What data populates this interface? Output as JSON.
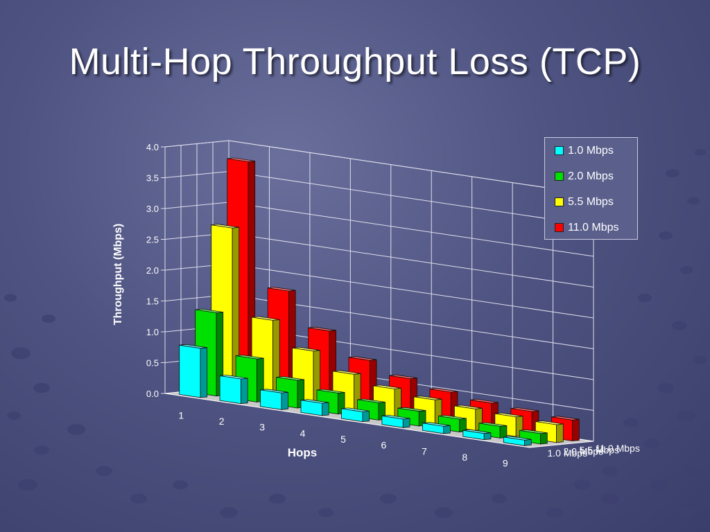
{
  "slide": {
    "title": "Multi-Hop Throughput Loss (TCP)"
  },
  "colors": {
    "1.0 Mbps": "#00ffff",
    "2.0 Mbps": "#00e000",
    "5.5 Mbps": "#ffff00",
    "11.0 Mbps": "#ff0000"
  },
  "legend": {
    "items": [
      {
        "label": "1.0 Mbps",
        "color": "#00ffff"
      },
      {
        "label": "2.0 Mbps",
        "color": "#00e000"
      },
      {
        "label": "5.5 Mbps",
        "color": "#ffff00"
      },
      {
        "label": "11.0 Mbps",
        "color": "#ff0000"
      }
    ]
  },
  "chart_data": {
    "type": "bar",
    "title": "",
    "xlabel": "Hops",
    "ylabel": "Throughput (Mbps)",
    "ylim": [
      0,
      4.0
    ],
    "yticks": [
      "0.0",
      "0.5",
      "1.0",
      "1.5",
      "2.0",
      "2.5",
      "3.0",
      "3.5",
      "4.0"
    ],
    "categories": [
      "1",
      "2",
      "3",
      "4",
      "5",
      "6",
      "7",
      "8",
      "9"
    ],
    "depth_labels": [
      "1.0 Mbps",
      "2.0 Mbps",
      "5.5 Mbps",
      "11.0 Mbps"
    ],
    "grid": true,
    "legend_position": "top-right",
    "series": [
      {
        "name": "1.0 Mbps",
        "values": [
          0.8,
          0.4,
          0.27,
          0.2,
          0.16,
          0.14,
          0.12,
          0.1,
          0.09
        ]
      },
      {
        "name": "2.0 Mbps",
        "values": [
          1.35,
          0.7,
          0.45,
          0.34,
          0.28,
          0.24,
          0.21,
          0.19,
          0.17
        ]
      },
      {
        "name": "5.5 Mbps",
        "values": [
          2.7,
          1.3,
          0.9,
          0.62,
          0.48,
          0.4,
          0.35,
          0.32,
          0.29
        ]
      },
      {
        "name": "11.0 Mbps",
        "values": [
          3.75,
          1.75,
          1.2,
          0.82,
          0.62,
          0.5,
          0.42,
          0.38,
          0.34
        ]
      }
    ]
  }
}
